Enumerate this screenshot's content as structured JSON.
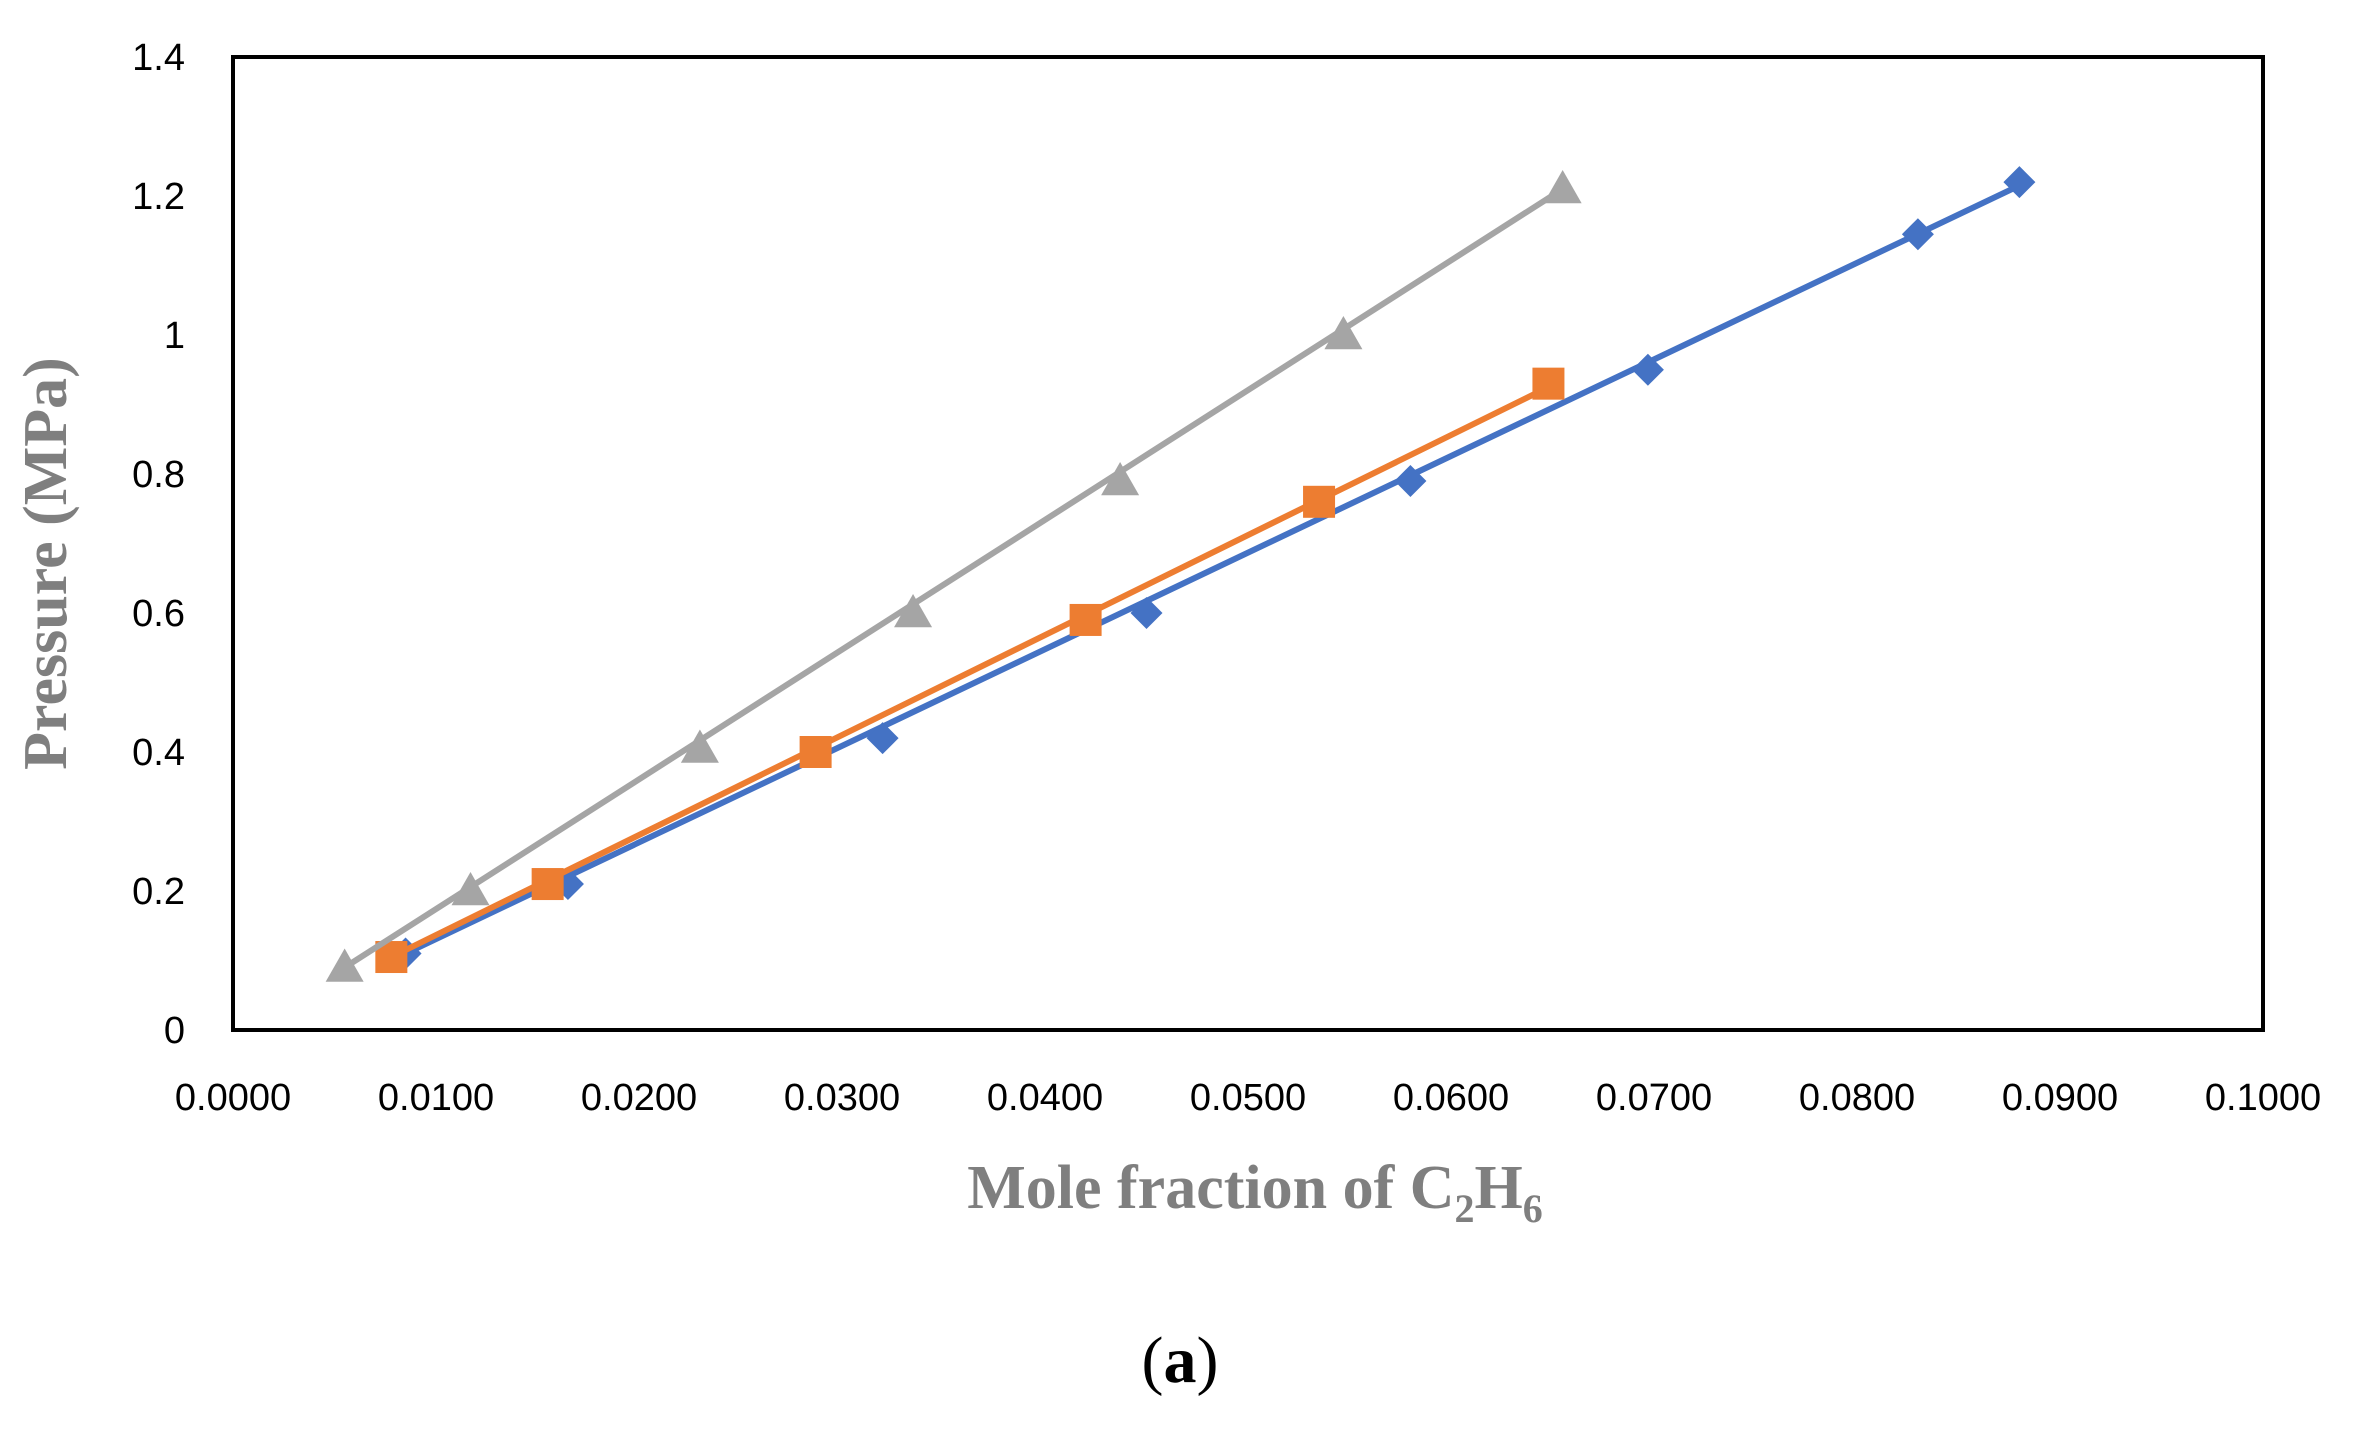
{
  "chart_data": {
    "type": "scatter",
    "title": "",
    "xlabel": {
      "main": "Mole fraction of C",
      "sub1": "2",
      "mid": "H",
      "sub2": "6"
    },
    "ylabel": "Pressure (MPa)",
    "xlim": [
      0.0,
      0.1
    ],
    "ylim": [
      0.0,
      1.4
    ],
    "xticks": [
      0.0,
      0.01,
      0.02,
      0.03,
      0.04,
      0.05,
      0.06,
      0.07,
      0.08,
      0.09,
      0.1
    ],
    "xtick_labels": [
      "0.0000",
      "0.0100",
      "0.0200",
      "0.0300",
      "0.0400",
      "0.0500",
      "0.0600",
      "0.0700",
      "0.0800",
      "0.0900",
      "0.1000"
    ],
    "yticks": [
      0,
      0.2,
      0.4,
      0.6,
      0.8,
      1.0,
      1.2,
      1.4
    ],
    "ytick_labels": [
      "0",
      "0.2",
      "0.4",
      "0.6",
      "0.8",
      "1",
      "1.2",
      "1.4"
    ],
    "grid": false,
    "legend": "none",
    "panel_label": {
      "open": "(",
      "letter": "a",
      "close": ")"
    },
    "series": [
      {
        "name": "series-blue-diamond",
        "color": "#4472C4",
        "marker": "diamond",
        "fit_line": [
          [
            0.0085,
            0.11
          ],
          [
            0.088,
            1.215
          ]
        ],
        "x": [
          0.0085,
          0.0165,
          0.032,
          0.045,
          0.058,
          0.0697,
          0.083,
          0.088
        ],
        "y": [
          0.11,
          0.21,
          0.42,
          0.6,
          0.79,
          0.95,
          1.145,
          1.22
        ]
      },
      {
        "name": "series-orange-square",
        "color": "#ED7D31",
        "marker": "square",
        "fit_line": [
          [
            0.0078,
            0.105
          ],
          [
            0.0648,
            0.925
          ]
        ],
        "x": [
          0.0078,
          0.0155,
          0.0287,
          0.042,
          0.0535,
          0.0648
        ],
        "y": [
          0.105,
          0.21,
          0.4,
          0.59,
          0.76,
          0.93
        ]
      },
      {
        "name": "series-gray-triangle",
        "color": "#A5A5A5",
        "marker": "triangle",
        "fit_line": [
          [
            0.0055,
            0.09
          ],
          [
            0.0655,
            1.21
          ]
        ],
        "x": [
          0.0055,
          0.0117,
          0.023,
          0.0335,
          0.0437,
          0.0547,
          0.0655
        ],
        "y": [
          0.09,
          0.2,
          0.405,
          0.6,
          0.79,
          1.0,
          1.21
        ]
      }
    ]
  }
}
